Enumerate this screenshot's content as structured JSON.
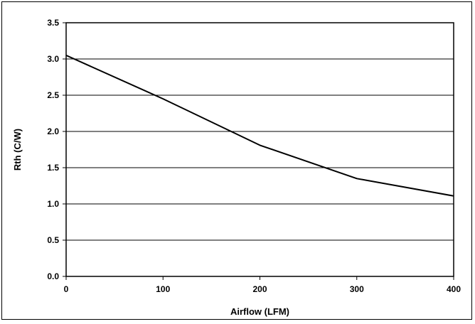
{
  "chart_data": {
    "type": "line",
    "title": "",
    "xlabel": "Airflow (LFM)",
    "ylabel": "Rth (C/W)",
    "xlim": [
      0,
      400
    ],
    "ylim": [
      0,
      3.5
    ],
    "x_ticks": [
      "0",
      "100",
      "200",
      "300",
      "400"
    ],
    "y_ticks": [
      "0.0",
      "0.5",
      "1.0",
      "1.5",
      "2.0",
      "2.5",
      "3.0",
      "3.5"
    ],
    "grid": "horizontal",
    "legend": "none",
    "series": [
      {
        "x": [
          0,
          100,
          200,
          300,
          400
        ],
        "values": [
          3.05,
          2.45,
          1.81,
          1.35,
          1.11
        ]
      }
    ],
    "colors": {
      "line": "#000000",
      "grid": "#000000",
      "background": "#ffffff"
    }
  }
}
